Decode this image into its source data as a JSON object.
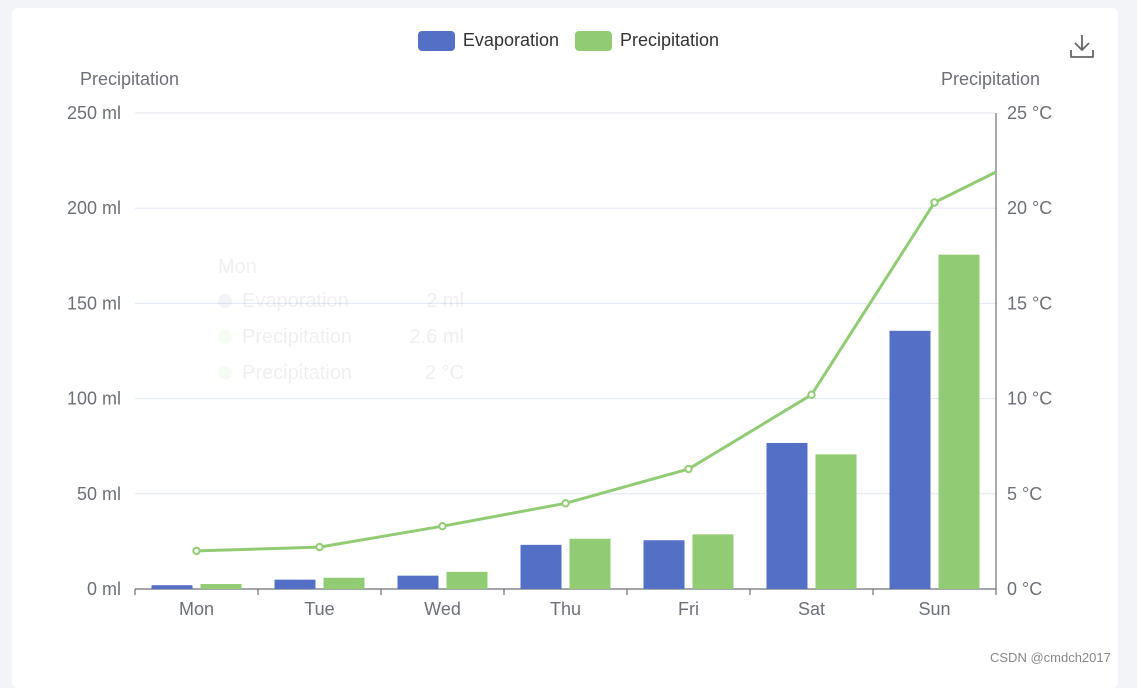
{
  "legend": {
    "items": [
      {
        "label": "Evaporation",
        "color": "#5470c6"
      },
      {
        "label": "Precipitation",
        "color": "#91cc75"
      }
    ]
  },
  "toolbox": {
    "icon": "download-icon"
  },
  "tooltip": {
    "title": "Mon",
    "rows": [
      {
        "label": "Evaporation",
        "value": "2 ml",
        "color": "#5470c6"
      },
      {
        "label": "Precipitation",
        "value": "2.6 ml",
        "color": "#91cc75"
      },
      {
        "label": "Precipitation",
        "value": "2 °C",
        "color": "#91cc75"
      }
    ]
  },
  "watermark": "CSDN @cmdch2017",
  "chart_data": {
    "type": "bar",
    "categories": [
      "Mon",
      "Tue",
      "Wed",
      "Thu",
      "Fri",
      "Sat",
      "Sun"
    ],
    "series": [
      {
        "name": "Evaporation",
        "type": "bar",
        "axis": "left",
        "color": "#5470c6",
        "values": [
          2.0,
          4.9,
          7.0,
          23.2,
          25.6,
          76.7,
          135.6
        ]
      },
      {
        "name": "Precipitation",
        "type": "bar",
        "axis": "left",
        "color": "#91cc75",
        "values": [
          2.6,
          5.9,
          9.0,
          26.4,
          28.7,
          70.7,
          175.6
        ]
      },
      {
        "name": "Precipitation",
        "type": "line",
        "axis": "right",
        "color": "#91cc75",
        "values": [
          2.0,
          2.2,
          3.3,
          4.5,
          6.3,
          10.2,
          20.3
        ],
        "extends_to": 21.9
      }
    ],
    "left_axis": {
      "name": "Precipitation",
      "unit": "ml",
      "min": 0,
      "max": 250,
      "interval": 50,
      "ticks": [
        "0 ml",
        "50 ml",
        "100 ml",
        "150 ml",
        "200 ml",
        "250 ml"
      ]
    },
    "right_axis": {
      "name": "Precipitation",
      "unit": "°C",
      "min": 0,
      "max": 25,
      "interval": 5,
      "ticks": [
        "0 °C",
        "5 °C",
        "10 °C",
        "15 °C",
        "20 °C",
        "25 °C"
      ]
    },
    "grid": true,
    "legend_position": "top-center"
  }
}
